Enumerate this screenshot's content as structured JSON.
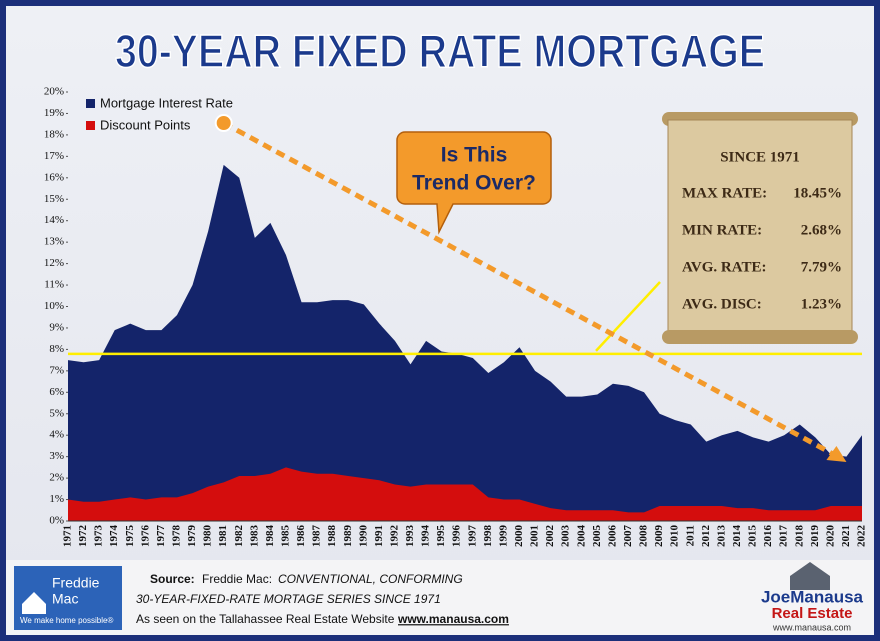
{
  "chart_data": {
    "type": "area",
    "title": "30-YEAR FIXED RATE MORTGAGE",
    "categories": [
      "1971",
      "1972",
      "1973",
      "1974",
      "1975",
      "1976",
      "1977",
      "1978",
      "1979",
      "1980",
      "1981",
      "1982",
      "1983",
      "1984",
      "1985",
      "1986",
      "1987",
      "1988",
      "1989",
      "1990",
      "1991",
      "1992",
      "1993",
      "1994",
      "1995",
      "1996",
      "1997",
      "1998",
      "1999",
      "2000",
      "2001",
      "2002",
      "2003",
      "2004",
      "2005",
      "2006",
      "2007",
      "2008",
      "2009",
      "2010",
      "2011",
      "2012",
      "2013",
      "2014",
      "2015",
      "2016",
      "2017",
      "2018",
      "2019",
      "2020",
      "2021",
      "2022"
    ],
    "series": [
      {
        "name": "Mortgage Interest Rate",
        "color": "#14246a",
        "values": [
          7.5,
          7.4,
          7.5,
          8.9,
          9.2,
          8.9,
          8.9,
          9.6,
          11.0,
          13.5,
          16.6,
          16.0,
          13.2,
          13.9,
          12.4,
          10.2,
          10.2,
          10.3,
          10.3,
          10.1,
          9.2,
          8.4,
          7.3,
          8.4,
          7.9,
          7.8,
          7.6,
          6.9,
          7.4,
          8.1,
          7.0,
          6.5,
          5.8,
          5.8,
          5.9,
          6.4,
          6.3,
          6.0,
          5.0,
          4.7,
          4.5,
          3.7,
          4.0,
          4.2,
          3.9,
          3.7,
          4.0,
          4.5,
          3.9,
          3.1,
          3.0,
          4.0
        ]
      },
      {
        "name": "Discount Points",
        "color": "#d40d0d",
        "values": [
          1.0,
          0.9,
          0.9,
          1.0,
          1.1,
          1.0,
          1.1,
          1.1,
          1.3,
          1.6,
          1.8,
          2.1,
          2.1,
          2.2,
          2.5,
          2.3,
          2.2,
          2.2,
          2.1,
          2.0,
          1.9,
          1.7,
          1.6,
          1.7,
          1.7,
          1.7,
          1.7,
          1.1,
          1.0,
          1.0,
          0.8,
          0.6,
          0.5,
          0.5,
          0.5,
          0.5,
          0.4,
          0.4,
          0.7,
          0.7,
          0.7,
          0.7,
          0.7,
          0.6,
          0.6,
          0.5,
          0.5,
          0.5,
          0.5,
          0.7,
          0.7,
          0.7
        ]
      }
    ],
    "ylim": [
      0,
      20
    ],
    "yticks": [
      {
        "value": 0,
        "label": "0%"
      },
      {
        "value": 1,
        "label": "1%"
      },
      {
        "value": 2,
        "label": "2%"
      },
      {
        "value": 3,
        "label": "3%"
      },
      {
        "value": 4,
        "label": "4%"
      },
      {
        "value": 5,
        "label": "5%"
      },
      {
        "value": 6,
        "label": "6%"
      },
      {
        "value": 7,
        "label": "7%"
      },
      {
        "value": 8,
        "label": "8%"
      },
      {
        "value": 9,
        "label": "9%"
      },
      {
        "value": 10,
        "label": "10%"
      },
      {
        "value": 11,
        "label": "11%"
      },
      {
        "value": 12,
        "label": "12%"
      },
      {
        "value": 13,
        "label": "13%"
      },
      {
        "value": 14,
        "label": "14%"
      },
      {
        "value": 15,
        "label": "15%"
      },
      {
        "value": 16,
        "label": "16%"
      },
      {
        "value": 17,
        "label": "17%"
      },
      {
        "value": 18,
        "label": "18%"
      },
      {
        "value": 19,
        "label": "19%"
      },
      {
        "value": 20,
        "label": "20%"
      }
    ],
    "average_line": 7.79,
    "callout": [
      "Is This",
      "Trend Over?"
    ],
    "stats_heading": "SINCE 1971",
    "stats": [
      {
        "label": "MAX RATE:",
        "value": "18.45%"
      },
      {
        "label": "MIN RATE:",
        "value": "2.68%"
      },
      {
        "label": "AVG. RATE:",
        "value": "7.79%"
      },
      {
        "label": "AVG. DISC:",
        "value": "1.23%"
      }
    ]
  },
  "footer": {
    "source_label": "Source:",
    "source": "Freddie Mac:",
    "source_detail": "CONVENTIONAL, CONFORMING",
    "series_line": "30-YEAR-FIXED-RATE MORTAGE SERIES SINCE 1971",
    "seen_on": "As seen on the Tallahassee Real Estate Website",
    "website": "www.manausa.com",
    "freddie_name_1": "Freddie",
    "freddie_name_2": "Mac",
    "freddie_tagline": "We make home possible®",
    "brand_1": "JoeManausa",
    "brand_2": "Real Estate",
    "brand_url": "www.manausa.com"
  }
}
